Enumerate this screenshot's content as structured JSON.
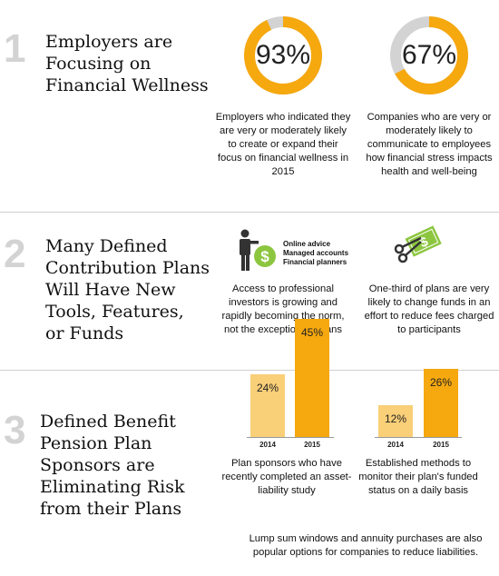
{
  "colors": {
    "accent": "#f6a80f",
    "accent_light": "#f9cf78",
    "track": "#d3d3d3",
    "number_gray": "#d3d3d3"
  },
  "sections": [
    {
      "number": "1",
      "title": "Employers are\nFocusing on\nFinancial Wellness",
      "stats": [
        {
          "value_label": "93%",
          "fraction": 0.93,
          "description": "Employers who indicated they are very or moderately likely to create or expand their focus on financial wellness in 2015"
        },
        {
          "value_label": "67%",
          "fraction": 0.67,
          "description": "Companies who are very or moderately likely to communicate to employees how financial stress impacts health and well-being"
        }
      ]
    },
    {
      "number": "2",
      "title": "Many Defined\nContribution Plans\nWill Have New\nTools, Features,\nor Funds",
      "advice_items": [
        "Online advice",
        "Managed accounts",
        "Financial planners"
      ],
      "icons": [
        "advisor-dollar-icon",
        "scissors-dollar-icon"
      ],
      "stats": [
        {
          "description": "Access to professional investors is growing and rapidly becoming the norm, not the exception, in plans"
        },
        {
          "description": "One-third of plans are very likely to change funds in an effort to reduce fees charged to participants"
        }
      ]
    },
    {
      "number": "3",
      "title": "Defined Benefit\nPension Plan\nSponsors are\nEliminating Risk\nfrom their Plans",
      "charts": [
        {
          "bars": [
            {
              "year": "2014",
              "label": "24%",
              "value": 24
            },
            {
              "year": "2015",
              "label": "45%",
              "value": 45
            }
          ],
          "description": "Plan sponsors who have recently completed an asset-liability study"
        },
        {
          "bars": [
            {
              "year": "2014",
              "label": "12%",
              "value": 12
            },
            {
              "year": "2015",
              "label": "26%",
              "value": 26
            }
          ],
          "description": "Established methods to monitor their plan's funded status on a daily basis"
        }
      ],
      "footer": "Lump sum windows and annuity purchases are also popular options for companies to reduce liabilities."
    }
  ]
}
